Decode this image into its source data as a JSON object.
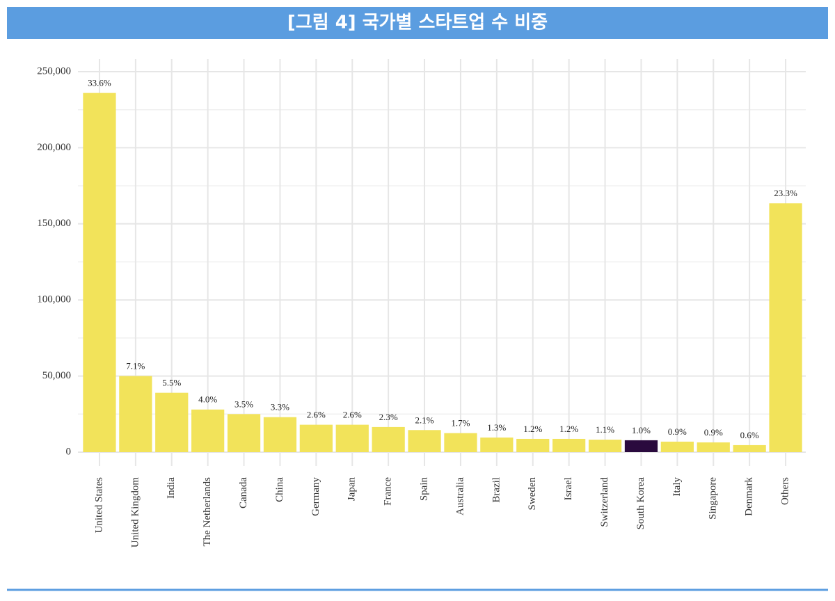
{
  "chart_data": {
    "type": "bar",
    "title": "[그림 4] 국가별 스타트업 수 비중",
    "categories": [
      "United States",
      "United Kingdom",
      "India",
      "The Netherlands",
      "Canada",
      "China",
      "Germany",
      "Japan",
      "France",
      "Spain",
      "Australia",
      "Brazil",
      "Sweden",
      "Israel",
      "Switzerland",
      "South Korea",
      "Italy",
      "Singapore",
      "Denmark",
      "Others"
    ],
    "values": [
      236000,
      50000,
      39000,
      28000,
      25000,
      23000,
      18000,
      18000,
      16500,
      14500,
      12500,
      9600,
      8700,
      8700,
      8200,
      7800,
      6900,
      6400,
      4600,
      163500
    ],
    "share_labels": [
      "33.6%",
      "7.1%",
      "5.5%",
      "4.0%",
      "3.5%",
      "3.3%",
      "2.6%",
      "2.6%",
      "2.3%",
      "2.1%",
      "1.7%",
      "1.3%",
      "1.2%",
      "1.2%",
      "1.1%",
      "1.0%",
      "0.9%",
      "0.9%",
      "0.6%",
      "23.3%"
    ],
    "colors": [
      "#f2e35a",
      "#f2e35a",
      "#f2e35a",
      "#f2e35a",
      "#f2e35a",
      "#f2e35a",
      "#f2e35a",
      "#f2e35a",
      "#f2e35a",
      "#f2e35a",
      "#f2e35a",
      "#f2e35a",
      "#f2e35a",
      "#f2e35a",
      "#f2e35a",
      "#2a0a3e",
      "#f2e35a",
      "#f2e35a",
      "#f2e35a",
      "#f2e35a"
    ],
    "ylim": [
      0,
      250000
    ],
    "yticks": [
      0,
      {
        "value": 50000,
        "label": "50,000"
      },
      {
        "value": 100000,
        "label": "100,000"
      },
      {
        "value": 150000,
        "label": "150,000"
      },
      {
        "value": 200000,
        "label": "200,000"
      },
      {
        "value": 250000,
        "label": "250,000"
      }
    ],
    "grid": true
  }
}
